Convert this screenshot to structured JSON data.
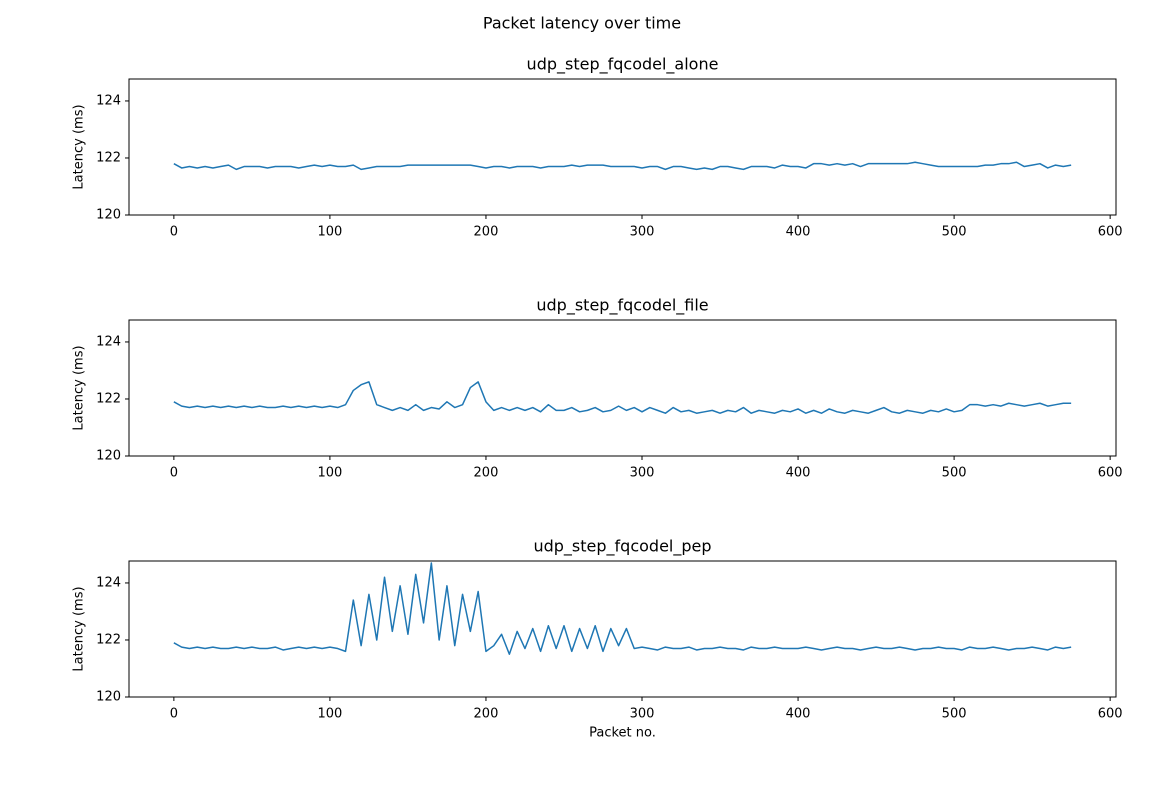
{
  "title": "Packet latency over time",
  "chart_data": [
    {
      "type": "line",
      "title": "udp_step_fqcodel_alone",
      "ylabel": "Latency (ms)",
      "xlim": [
        -28.75,
        603.75
      ],
      "ylim": [
        120,
        124.77
      ],
      "xticks": [
        0,
        100,
        200,
        300,
        400,
        500,
        600
      ],
      "yticks": [
        120,
        122,
        124
      ],
      "x": [
        0,
        5,
        10,
        15,
        20,
        25,
        30,
        35,
        40,
        45,
        50,
        55,
        60,
        65,
        70,
        75,
        80,
        85,
        90,
        95,
        100,
        105,
        110,
        115,
        120,
        125,
        130,
        135,
        140,
        145,
        150,
        155,
        160,
        165,
        170,
        175,
        180,
        185,
        190,
        195,
        200,
        205,
        210,
        215,
        220,
        225,
        230,
        235,
        240,
        245,
        250,
        255,
        260,
        265,
        270,
        275,
        280,
        285,
        290,
        295,
        300,
        305,
        310,
        315,
        320,
        325,
        330,
        335,
        340,
        345,
        350,
        355,
        360,
        365,
        370,
        375,
        380,
        385,
        390,
        395,
        400,
        405,
        410,
        415,
        420,
        425,
        430,
        435,
        440,
        445,
        450,
        455,
        460,
        465,
        470,
        475,
        480,
        485,
        490,
        495,
        500,
        505,
        510,
        515,
        520,
        525,
        530,
        535,
        540,
        545,
        550,
        555,
        560,
        565,
        570,
        575
      ],
      "color": "#1f77b4",
      "values": [
        121.8,
        121.65,
        121.7,
        121.65,
        121.7,
        121.65,
        121.7,
        121.75,
        121.6,
        121.7,
        121.7,
        121.7,
        121.65,
        121.7,
        121.7,
        121.7,
        121.65,
        121.7,
        121.75,
        121.7,
        121.75,
        121.7,
        121.7,
        121.75,
        121.6,
        121.65,
        121.7,
        121.7,
        121.7,
        121.7,
        121.75,
        121.75,
        121.75,
        121.75,
        121.75,
        121.75,
        121.75,
        121.75,
        121.75,
        121.7,
        121.65,
        121.7,
        121.7,
        121.65,
        121.7,
        121.7,
        121.7,
        121.65,
        121.7,
        121.7,
        121.7,
        121.75,
        121.7,
        121.75,
        121.75,
        121.75,
        121.7,
        121.7,
        121.7,
        121.7,
        121.65,
        121.7,
        121.7,
        121.6,
        121.7,
        121.7,
        121.65,
        121.6,
        121.65,
        121.6,
        121.7,
        121.7,
        121.65,
        121.6,
        121.7,
        121.7,
        121.7,
        121.65,
        121.75,
        121.7,
        121.7,
        121.65,
        121.8,
        121.8,
        121.75,
        121.8,
        121.75,
        121.8,
        121.7,
        121.8,
        121.8,
        121.8,
        121.8,
        121.8,
        121.8,
        121.85,
        121.8,
        121.75,
        121.7,
        121.7,
        121.7,
        121.7,
        121.7,
        121.7,
        121.75,
        121.75,
        121.8,
        121.8,
        121.85,
        121.7,
        121.75,
        121.8,
        121.65,
        121.75,
        121.7,
        121.75
      ]
    },
    {
      "type": "line",
      "title": "udp_step_fqcodel_file",
      "ylabel": "Latency (ms)",
      "xlim": [
        -28.75,
        603.75
      ],
      "ylim": [
        120,
        124.77
      ],
      "xticks": [
        0,
        100,
        200,
        300,
        400,
        500,
        600
      ],
      "yticks": [
        120,
        122,
        124
      ],
      "x": [
        0,
        5,
        10,
        15,
        20,
        25,
        30,
        35,
        40,
        45,
        50,
        55,
        60,
        65,
        70,
        75,
        80,
        85,
        90,
        95,
        100,
        105,
        110,
        115,
        120,
        125,
        130,
        135,
        140,
        145,
        150,
        155,
        160,
        165,
        170,
        175,
        180,
        185,
        190,
        195,
        200,
        205,
        210,
        215,
        220,
        225,
        230,
        235,
        240,
        245,
        250,
        255,
        260,
        265,
        270,
        275,
        280,
        285,
        290,
        295,
        300,
        305,
        310,
        315,
        320,
        325,
        330,
        335,
        340,
        345,
        350,
        355,
        360,
        365,
        370,
        375,
        380,
        385,
        390,
        395,
        400,
        405,
        410,
        415,
        420,
        425,
        430,
        435,
        440,
        445,
        450,
        455,
        460,
        465,
        470,
        475,
        480,
        485,
        490,
        495,
        500,
        505,
        510,
        515,
        520,
        525,
        530,
        535,
        540,
        545,
        550,
        555,
        560,
        565,
        570,
        575
      ],
      "color": "#1f77b4",
      "values": [
        121.9,
        121.75,
        121.7,
        121.75,
        121.7,
        121.75,
        121.7,
        121.75,
        121.7,
        121.75,
        121.7,
        121.75,
        121.7,
        121.7,
        121.75,
        121.7,
        121.75,
        121.7,
        121.75,
        121.7,
        121.75,
        121.7,
        121.8,
        122.3,
        122.5,
        122.6,
        121.8,
        121.7,
        121.6,
        121.7,
        121.6,
        121.8,
        121.6,
        121.7,
        121.65,
        121.9,
        121.7,
        121.8,
        122.4,
        122.6,
        121.9,
        121.6,
        121.7,
        121.6,
        121.7,
        121.6,
        121.7,
        121.55,
        121.8,
        121.6,
        121.6,
        121.7,
        121.55,
        121.6,
        121.7,
        121.55,
        121.6,
        121.75,
        121.6,
        121.7,
        121.55,
        121.7,
        121.6,
        121.5,
        121.7,
        121.55,
        121.6,
        121.5,
        121.55,
        121.6,
        121.5,
        121.6,
        121.55,
        121.7,
        121.5,
        121.6,
        121.55,
        121.5,
        121.6,
        121.55,
        121.65,
        121.5,
        121.6,
        121.5,
        121.65,
        121.55,
        121.5,
        121.6,
        121.55,
        121.5,
        121.6,
        121.7,
        121.55,
        121.5,
        121.6,
        121.55,
        121.5,
        121.6,
        121.55,
        121.65,
        121.55,
        121.6,
        121.8,
        121.8,
        121.75,
        121.8,
        121.75,
        121.85,
        121.8,
        121.75,
        121.8,
        121.85,
        121.75,
        121.8,
        121.85,
        121.85
      ]
    },
    {
      "type": "line",
      "title": "udp_step_fqcodel_pep",
      "ylabel": "Latency (ms)",
      "xlabel": "Packet no.",
      "xlim": [
        -28.75,
        603.75
      ],
      "ylim": [
        120,
        124.77
      ],
      "xticks": [
        0,
        100,
        200,
        300,
        400,
        500,
        600
      ],
      "yticks": [
        120,
        122,
        124
      ],
      "x": [
        0,
        5,
        10,
        15,
        20,
        25,
        30,
        35,
        40,
        45,
        50,
        55,
        60,
        65,
        70,
        75,
        80,
        85,
        90,
        95,
        100,
        105,
        110,
        115,
        120,
        125,
        130,
        135,
        140,
        145,
        150,
        155,
        160,
        165,
        170,
        175,
        180,
        185,
        190,
        195,
        200,
        205,
        210,
        215,
        220,
        225,
        230,
        235,
        240,
        245,
        250,
        255,
        260,
        265,
        270,
        275,
        280,
        285,
        290,
        295,
        300,
        305,
        310,
        315,
        320,
        325,
        330,
        335,
        340,
        345,
        350,
        355,
        360,
        365,
        370,
        375,
        380,
        385,
        390,
        395,
        400,
        405,
        410,
        415,
        420,
        425,
        430,
        435,
        440,
        445,
        450,
        455,
        460,
        465,
        470,
        475,
        480,
        485,
        490,
        495,
        500,
        505,
        510,
        515,
        520,
        525,
        530,
        535,
        540,
        545,
        550,
        555,
        560,
        565,
        570,
        575
      ],
      "color": "#1f77b4",
      "values": [
        121.9,
        121.75,
        121.7,
        121.75,
        121.7,
        121.75,
        121.7,
        121.7,
        121.75,
        121.7,
        121.75,
        121.7,
        121.7,
        121.75,
        121.65,
        121.7,
        121.75,
        121.7,
        121.75,
        121.7,
        121.75,
        121.7,
        121.6,
        123.4,
        121.8,
        123.6,
        122.0,
        124.2,
        122.3,
        123.9,
        122.2,
        124.3,
        122.6,
        124.7,
        122.0,
        123.9,
        121.8,
        123.6,
        122.3,
        123.7,
        121.6,
        121.8,
        122.2,
        121.5,
        122.3,
        121.7,
        122.4,
        121.6,
        122.5,
        121.7,
        122.5,
        121.6,
        122.4,
        121.7,
        122.5,
        121.6,
        122.4,
        121.8,
        122.4,
        121.7,
        121.75,
        121.7,
        121.65,
        121.75,
        121.7,
        121.7,
        121.75,
        121.65,
        121.7,
        121.7,
        121.75,
        121.7,
        121.7,
        121.65,
        121.75,
        121.7,
        121.7,
        121.75,
        121.7,
        121.7,
        121.7,
        121.75,
        121.7,
        121.65,
        121.7,
        121.75,
        121.7,
        121.7,
        121.65,
        121.7,
        121.75,
        121.7,
        121.7,
        121.75,
        121.7,
        121.65,
        121.7,
        121.7,
        121.75,
        121.7,
        121.7,
        121.65,
        121.75,
        121.7,
        121.7,
        121.75,
        121.7,
        121.65,
        121.7,
        121.7,
        121.75,
        121.7,
        121.65,
        121.75,
        121.7,
        121.75
      ]
    }
  ]
}
